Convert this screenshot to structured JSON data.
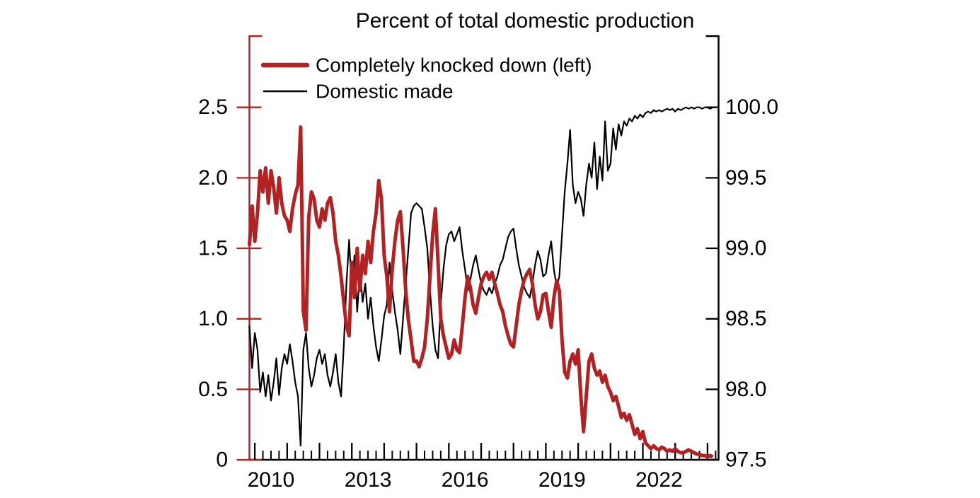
{
  "page": {
    "background": "#ffffff"
  },
  "chart_data": {
    "type": "line",
    "title": "Percent of total domestic production",
    "legend": {
      "position": "top-left",
      "entries": [
        {
          "label": "Completely knocked down (left)",
          "color": "#b22222",
          "line_width": 6.5
        },
        {
          "label": "Domestic made",
          "color": "#000000",
          "line_width": 2.5
        }
      ]
    },
    "x_axis": {
      "unit": "year",
      "start": 2009.8333,
      "step": 0.0833333,
      "end": 2024.1667,
      "minor_tick_interval": 0.25,
      "major_tick_interval": 1,
      "tick_labels": [
        {
          "text": "2010",
          "at": 2010.5
        },
        {
          "text": "2013",
          "at": 2013.5
        },
        {
          "text": "2016",
          "at": 2016.5
        },
        {
          "text": "2019",
          "at": 2019.5
        },
        {
          "text": "2022",
          "at": 2022.5
        }
      ]
    },
    "left_axis": {
      "color": "#b22222",
      "min": 0,
      "max": 3.0,
      "ticks": [
        {
          "value": 0.0,
          "label": "0"
        },
        {
          "value": 0.5,
          "label": "0.5"
        },
        {
          "value": 1.0,
          "label": "1.0"
        },
        {
          "value": 1.5,
          "label": "1.5"
        },
        {
          "value": 2.0,
          "label": "2.0"
        },
        {
          "value": 2.5,
          "label": "2.5"
        }
      ]
    },
    "right_axis": {
      "color": "#000000",
      "min": 97.5,
      "max": 100.5,
      "ticks": [
        {
          "value": 97.5,
          "label": "97.5"
        },
        {
          "value": 98.0,
          "label": "98.0"
        },
        {
          "value": 98.5,
          "label": "98.5"
        },
        {
          "value": 99.0,
          "label": "99.0"
        },
        {
          "value": 99.5,
          "label": "99.5"
        },
        {
          "value": 100.0,
          "label": "100.0"
        }
      ]
    },
    "series": [
      {
        "name": "Completely knocked down (left)",
        "axis": "left",
        "color": "#b22222",
        "stroke_width": 5,
        "values": [
          1.52,
          1.8,
          1.55,
          1.75,
          2.05,
          1.9,
          2.07,
          1.82,
          2.05,
          1.93,
          1.75,
          2.0,
          1.82,
          1.73,
          1.7,
          1.62,
          1.78,
          1.88,
          1.95,
          2.36,
          1.05,
          0.92,
          1.72,
          1.9,
          1.85,
          1.7,
          1.65,
          1.78,
          1.7,
          1.82,
          1.86,
          1.75,
          1.55,
          1.45,
          1.3,
          1.12,
          0.95,
          0.88,
          1.4,
          1.15,
          1.5,
          1.2,
          1.45,
          1.32,
          1.55,
          1.4,
          1.62,
          1.75,
          1.98,
          1.85,
          1.45,
          1.3,
          1.05,
          1.35,
          1.55,
          1.7,
          1.76,
          1.5,
          1.2,
          0.99,
          0.85,
          0.7,
          0.7,
          0.66,
          0.72,
          0.8,
          1.0,
          1.3,
          1.6,
          1.78,
          1.4,
          1.0,
          0.88,
          0.8,
          0.72,
          0.75,
          0.85,
          0.78,
          0.76,
          0.95,
          1.15,
          1.3,
          1.22,
          1.1,
          1.04,
          1.15,
          1.25,
          1.3,
          1.33,
          1.28,
          1.33,
          1.25,
          1.18,
          1.1,
          1.05,
          0.95,
          0.88,
          0.82,
          0.8,
          0.95,
          1.1,
          1.2,
          1.28,
          1.32,
          1.35,
          1.25,
          1.1,
          1.0,
          1.05,
          1.17,
          1.18,
          1.05,
          0.94,
          1.15,
          1.27,
          1.2,
          0.85,
          0.62,
          0.58,
          0.7,
          0.75,
          0.68,
          0.78,
          0.45,
          0.2,
          0.45,
          0.7,
          0.75,
          0.65,
          0.6,
          0.63,
          0.55,
          0.6,
          0.52,
          0.48,
          0.42,
          0.45,
          0.38,
          0.3,
          0.33,
          0.28,
          0.32,
          0.25,
          0.18,
          0.22,
          0.15,
          0.2,
          0.12,
          0.1,
          0.08,
          0.1,
          0.08,
          0.07,
          0.09,
          0.08,
          0.06,
          0.07,
          0.06,
          0.08,
          0.06,
          0.05,
          0.05,
          0.06,
          0.07,
          0.06,
          0.05,
          0.04,
          0.04,
          0.03,
          0.03,
          0.02,
          0.03,
          0.02
        ]
      },
      {
        "name": "Domestic made",
        "axis": "right",
        "color": "#000000",
        "stroke_width": 2.2,
        "values": [
          98.45,
          98.15,
          98.4,
          98.28,
          97.98,
          98.12,
          97.95,
          98.1,
          97.92,
          98.05,
          98.22,
          97.96,
          98.15,
          98.25,
          98.18,
          98.32,
          98.2,
          98.05,
          97.95,
          97.6,
          98.28,
          98.4,
          98.15,
          98.02,
          98.1,
          98.22,
          98.28,
          98.18,
          98.25,
          98.1,
          98.02,
          98.12,
          98.25,
          98.05,
          97.95,
          98.3,
          98.75,
          99.06,
          98.7,
          98.95,
          98.55,
          98.85,
          98.62,
          98.75,
          98.5,
          98.65,
          98.45,
          98.3,
          98.2,
          98.35,
          98.52,
          98.6,
          98.9,
          98.7,
          98.55,
          98.42,
          98.25,
          98.5,
          98.75,
          99.0,
          99.25,
          99.3,
          99.32,
          99.3,
          99.28,
          99.15,
          99.0,
          98.7,
          98.45,
          98.28,
          98.22,
          98.6,
          98.85,
          99.02,
          99.1,
          99.12,
          99.05,
          99.1,
          99.15,
          98.98,
          98.85,
          98.7,
          98.78,
          98.88,
          98.95,
          98.85,
          98.75,
          98.7,
          98.67,
          98.72,
          98.68,
          98.75,
          98.8,
          98.88,
          98.92,
          99.0,
          99.08,
          99.12,
          99.14,
          99.0,
          98.88,
          98.8,
          98.72,
          98.68,
          98.65,
          98.75,
          98.88,
          98.98,
          98.92,
          98.8,
          98.82,
          98.95,
          99.05,
          98.85,
          98.73,
          98.8,
          99.1,
          99.4,
          99.6,
          99.84,
          99.45,
          99.32,
          99.4,
          99.35,
          99.23,
          99.45,
          99.6,
          99.5,
          99.75,
          99.42,
          99.65,
          99.48,
          99.9,
          99.55,
          99.6,
          99.85,
          99.7,
          99.88,
          99.8,
          99.9,
          99.87,
          99.92,
          99.9,
          99.94,
          99.92,
          99.95,
          99.93,
          99.96,
          99.97,
          99.96,
          99.98,
          99.97,
          99.98,
          99.97,
          99.98,
          99.99,
          99.98,
          99.99,
          99.97,
          99.99,
          99.98,
          99.99,
          100.0,
          99.99,
          100.0,
          99.99,
          100.0,
          100.0,
          99.99,
          100.0,
          100.0,
          99.99,
          100.0
        ]
      }
    ]
  }
}
